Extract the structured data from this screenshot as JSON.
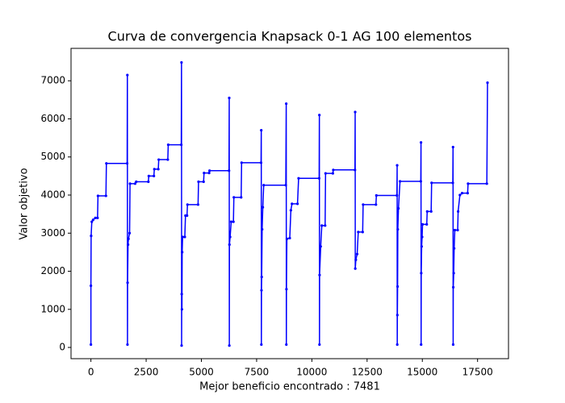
{
  "chart_data": {
    "type": "line",
    "title": "Curva de convergencia Knapsack 0-1 AG 100 elementos",
    "xlabel": "Mejor beneficio encontrado : 7481",
    "ylabel": "Valor objetivo",
    "xlim": [
      -900,
      18900
    ],
    "ylim": [
      -295,
      7851
    ],
    "xticks": [
      0,
      2500,
      5000,
      7500,
      10000,
      12500,
      15000,
      17500
    ],
    "yticks": [
      0,
      1000,
      2000,
      3000,
      4000,
      5000,
      6000,
      7000
    ],
    "grid": false,
    "series": [
      {
        "color": "#0000ff",
        "x": [
          0,
          0,
          10,
          40,
          100,
          200,
          300,
          320,
          680,
          700,
          1640,
          1650,
          1655,
          1660,
          1680,
          1700,
          1750,
          1770,
          2000,
          2050,
          2600,
          2620,
          2850,
          2870,
          3050,
          3070,
          3480,
          3500,
          4090,
          4100,
          4105,
          4110,
          4120,
          4130,
          4150,
          4250,
          4280,
          4350,
          4370,
          4850,
          4870,
          5100,
          5120,
          5350,
          5370,
          6250,
          6260,
          6265,
          6270,
          6300,
          6350,
          6450,
          6470,
          6800,
          6820,
          7700,
          7710,
          7715,
          7720,
          7730,
          7750,
          7780,
          7820,
          8820,
          8840,
          8845,
          8850,
          8870,
          9000,
          9050,
          9100,
          9350,
          9400,
          10330,
          10340,
          10345,
          10350,
          10400,
          10450,
          10600,
          10620,
          10950,
          10970,
          11950,
          11960,
          11965,
          11990,
          12050,
          12100,
          12300,
          12320,
          12900,
          12920,
          13850,
          13860,
          13865,
          13870,
          13880,
          13890,
          13920,
          13990,
          14930,
          14940,
          14945,
          14950,
          14970,
          14990,
          15010,
          15200,
          15220,
          15400,
          15420,
          16380,
          16390,
          16395,
          16400,
          16420,
          16440,
          16470,
          16600,
          16620,
          16700,
          16800,
          17050,
          17070,
          17920,
          17950
        ],
        "values": [
          75,
          1620,
          2930,
          3300,
          3350,
          3400,
          3400,
          3980,
          3980,
          4830,
          4830,
          7150,
          75,
          1700,
          2700,
          2850,
          3000,
          4300,
          4300,
          4350,
          4350,
          4500,
          4500,
          4680,
          4680,
          4930,
          4930,
          5320,
          5320,
          7481,
          50,
          1400,
          1000,
          2500,
          2900,
          2900,
          3460,
          3460,
          3750,
          3750,
          4350,
          4350,
          4580,
          4580,
          4640,
          4640,
          6550,
          50,
          2700,
          2900,
          3300,
          3300,
          3940,
          3940,
          4850,
          4850,
          5700,
          75,
          1500,
          1850,
          3100,
          3680,
          4260,
          4260,
          6400,
          75,
          1530,
          2850,
          2870,
          3600,
          3770,
          3770,
          4440,
          4440,
          6100,
          75,
          1900,
          2650,
          3200,
          3200,
          4570,
          4570,
          4660,
          4660,
          6180,
          2070,
          2300,
          2450,
          3030,
          3030,
          3750,
          3750,
          3990,
          3990,
          4780,
          75,
          850,
          1600,
          3100,
          3650,
          4360,
          4360,
          5380,
          75,
          1950,
          2650,
          2900,
          3230,
          3230,
          3570,
          3570,
          4320,
          4320,
          5260,
          75,
          1580,
          1950,
          2600,
          3080,
          3080,
          3570,
          4000,
          4050,
          4050,
          4300,
          4300,
          6950
        ]
      }
    ]
  }
}
